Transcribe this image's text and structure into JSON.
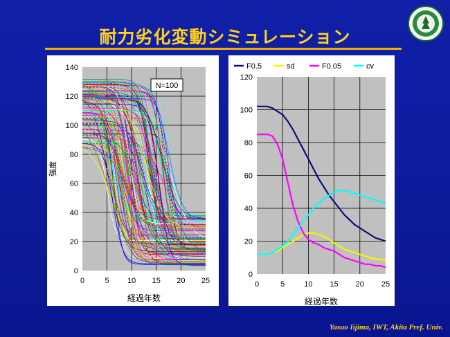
{
  "slide": {
    "title": "耐力劣化変動シミュレーション",
    "footer": "Yasuo Iijima, IWT, Akita Pref.  Univ."
  },
  "colors": {
    "background": "#0d1a9c",
    "title": "#ffd21a",
    "rule": "#e8b400",
    "plot_bg": "#c0c0c0"
  },
  "logo": {
    "icon": "university-emblem-icon"
  },
  "chart_data": [
    {
      "type": "line",
      "annotation": "N=100",
      "xlabel": "経過年数",
      "ylabel": "強度",
      "xlim": [
        0,
        25
      ],
      "ylim": [
        0,
        140
      ],
      "x_ticks": [
        "0",
        "5",
        "10",
        "15",
        "20",
        "25"
      ],
      "y_ticks": [
        "0",
        "20",
        "40",
        "60",
        "80",
        "100",
        "120",
        "140"
      ],
      "grid": true,
      "simulation_runs": 100,
      "legend": "none"
    },
    {
      "type": "line",
      "xlabel": "経過年数",
      "ylabel": "",
      "xlim": [
        0,
        25
      ],
      "ylim": [
        0,
        120
      ],
      "x_ticks": [
        "0",
        "5",
        "10",
        "15",
        "20",
        "25"
      ],
      "y_ticks": [
        "0",
        "20",
        "40",
        "60",
        "80",
        "100",
        "120"
      ],
      "grid": true,
      "legend": "top",
      "x": [
        0,
        1,
        2,
        3,
        4,
        5,
        6,
        7,
        8,
        9,
        10,
        11,
        12,
        13,
        14,
        15,
        16,
        17,
        18,
        19,
        20,
        21,
        22,
        23,
        24,
        25
      ],
      "series": [
        {
          "name": "F0.5",
          "color": "#0a0a78",
          "values": [
            102,
            102,
            102,
            101,
            99,
            97,
            93,
            88,
            82,
            76,
            70,
            64,
            58,
            53,
            48,
            44,
            40,
            36,
            33,
            30,
            28,
            26,
            24,
            22,
            21,
            20
          ]
        },
        {
          "name": "sd",
          "color": "#f5f500",
          "values": [
            12,
            12,
            12,
            13,
            14,
            16,
            18,
            20,
            22,
            24,
            25,
            25,
            24,
            23,
            21,
            19,
            17,
            15,
            14,
            13,
            12,
            11,
            10,
            9,
            9,
            8
          ]
        },
        {
          "name": "F0.05",
          "color": "#ff00ff",
          "values": [
            85,
            85,
            85,
            84,
            79,
            70,
            56,
            42,
            32,
            25,
            21,
            19,
            18,
            16,
            15,
            14,
            12,
            10,
            9,
            8,
            7,
            6,
            6,
            5,
            5,
            4
          ]
        },
        {
          "name": "cv",
          "color": "#00ffff",
          "values": [
            12,
            12,
            12,
            13,
            15,
            17,
            20,
            24,
            28,
            32,
            36,
            40,
            43,
            46,
            48,
            50,
            51,
            51,
            50,
            49,
            48,
            47,
            46,
            45,
            44,
            43
          ]
        }
      ]
    }
  ]
}
